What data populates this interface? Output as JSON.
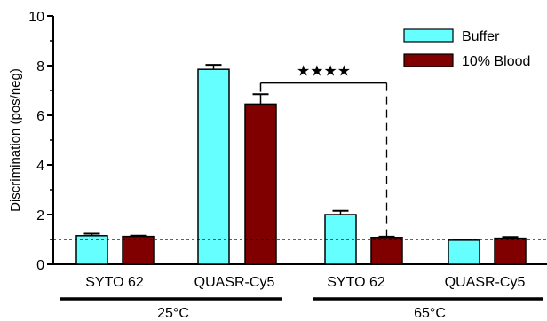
{
  "chart_data": {
    "type": "bar",
    "ylabel": "Discrimination (pos/neg)",
    "ylim": [
      0,
      10
    ],
    "yticks": [
      "0",
      "2",
      "4",
      "6",
      "8",
      "10"
    ],
    "categories": [
      "SYTO 62",
      "QUASR-Cy5",
      "SYTO 62",
      "QUASR-Cy5"
    ],
    "groups": [
      {
        "label": "25°C",
        "categories": [
          0,
          1
        ]
      },
      {
        "label": "65°C",
        "categories": [
          2,
          3
        ]
      }
    ],
    "series": [
      {
        "name": "Buffer",
        "color": "#66ffff",
        "values": [
          1.15,
          7.85,
          2.0,
          0.97
        ],
        "errors": [
          0.08,
          0.18,
          0.15,
          0.03
        ]
      },
      {
        "name": "10% Blood",
        "color": "#800000",
        "values": [
          1.12,
          6.45,
          1.08,
          1.05
        ],
        "errors": [
          0.03,
          0.4,
          0.03,
          0.05
        ]
      }
    ],
    "reference_line": {
      "y": 1,
      "style": "dashed"
    },
    "significance": {
      "label": "★★★★",
      "level": 7.3
    },
    "legend_position": "top-right",
    "grid": false
  }
}
